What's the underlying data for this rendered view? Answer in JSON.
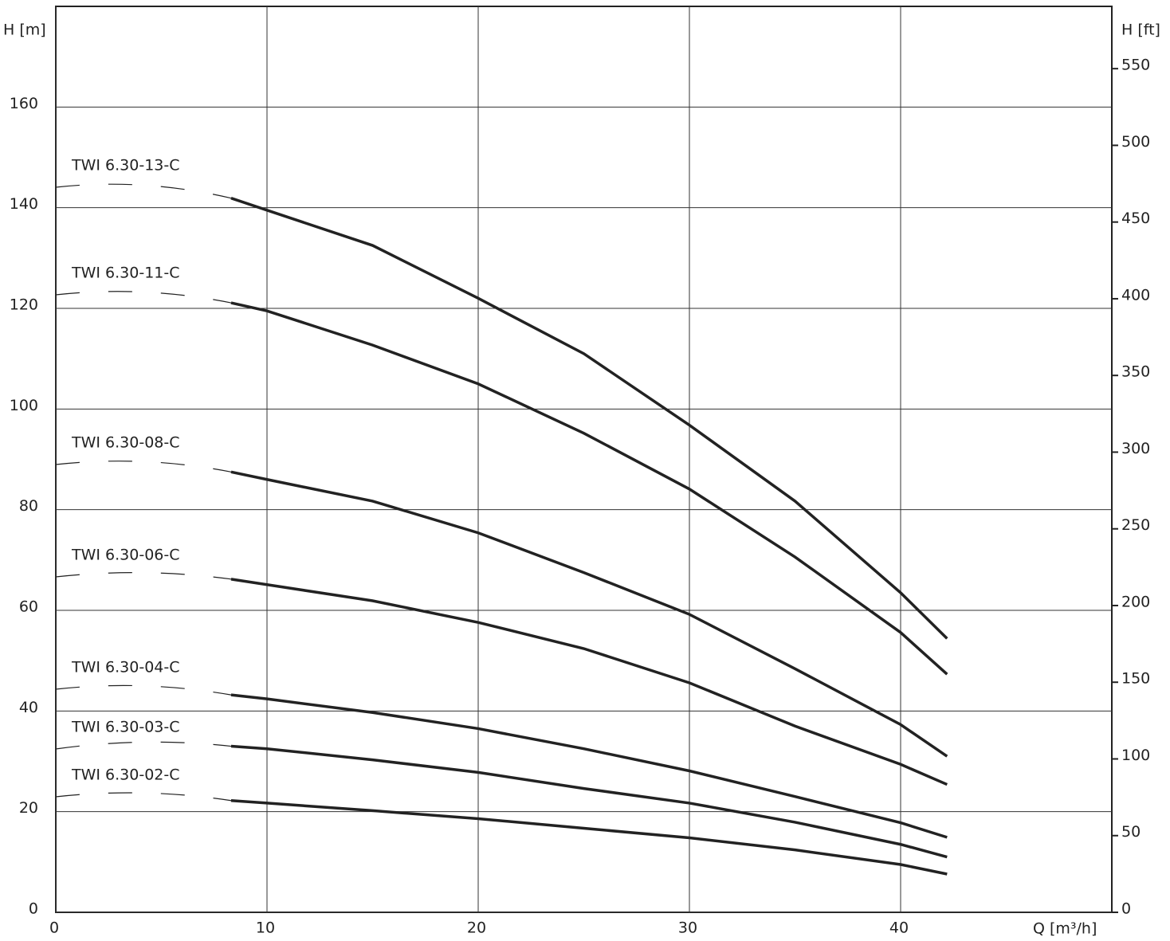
{
  "chart_data": {
    "type": "line",
    "y_label": "H [m]",
    "y2_label": "H [ft]",
    "x_label": "Q [m³/h]",
    "xlim": [
      0,
      50
    ],
    "xticks": [
      0,
      10,
      20,
      30,
      40
    ],
    "ylim": [
      0,
      180
    ],
    "yticks": [
      0,
      20,
      40,
      60,
      80,
      100,
      120,
      140,
      160
    ],
    "y2lim": [
      0,
      590.6
    ],
    "y2ticks": [
      0,
      50,
      100,
      150,
      200,
      250,
      300,
      350,
      400,
      450,
      500,
      550
    ],
    "grid": true,
    "x": [
      8.3,
      10,
      15,
      20,
      25,
      30,
      35,
      40,
      42.2
    ],
    "series": [
      {
        "name": "TWI 6.30-13-C",
        "color": "#222222",
        "values": [
          141.9,
          139.5,
          132.5,
          122,
          111,
          96.8,
          81.7,
          63.5,
          54.4
        ]
      },
      {
        "name": "TWI 6.30-11-C",
        "color": "#222222",
        "values": [
          121.1,
          119.5,
          112.7,
          105,
          95.2,
          84.1,
          70.6,
          55.6,
          47.3
        ]
      },
      {
        "name": "TWI 6.30-08-C",
        "color": "#222222",
        "values": [
          87.5,
          86,
          81.7,
          75.4,
          67.5,
          59.2,
          48.4,
          37.3,
          31
        ]
      },
      {
        "name": "TWI 6.30-06-C",
        "color": "#222222",
        "values": [
          66.2,
          65.1,
          61.9,
          57.6,
          52.4,
          45.6,
          37,
          29.4,
          25.4
        ]
      },
      {
        "name": "TWI 6.30-04-C",
        "color": "#222222",
        "values": [
          43.2,
          42.4,
          39.7,
          36.5,
          32.5,
          28.1,
          23,
          17.8,
          14.9
        ]
      },
      {
        "name": "TWI 6.30-03-C",
        "color": "#222222",
        "values": [
          33,
          32.5,
          30.3,
          27.8,
          24.6,
          21.7,
          17.9,
          13.5,
          11
        ]
      },
      {
        "name": "TWI 6.30-02-C",
        "color": "#222222",
        "values": [
          22.2,
          21.7,
          20.2,
          18.6,
          16.7,
          14.8,
          12.4,
          9.5,
          7.6
        ]
      }
    ]
  }
}
